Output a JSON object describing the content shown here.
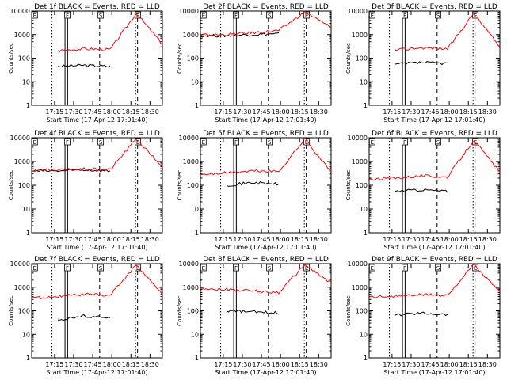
{
  "xlabel": "Start Time (17-Apr-12 17:01:40)",
  "ylabel": "Counts/sec",
  "x_tick_labels": [
    "17:15",
    "17:30",
    "17:45",
    "18:00",
    "18:15",
    "18:30"
  ],
  "y_tick_labels": [
    "1",
    "10",
    "100",
    "1000",
    "10000"
  ],
  "flag_letters": [
    "E",
    "F",
    "S",
    "E"
  ],
  "colors": {
    "events": "#000000",
    "lld": "#ff0000",
    "axes": "#000000"
  },
  "chart_data": [
    {
      "type": "line",
      "title": "Det 1f BLACK = Events, RED = LLD",
      "x": [
        "17:15",
        "17:30",
        "17:45",
        "18:00",
        "18:15",
        "18:30"
      ],
      "ylim": [
        1,
        10000
      ],
      "yscale": "log",
      "series": [
        {
          "values": [
            null,
            45,
            50,
            45,
            null,
            null
          ]
        },
        {
          "values": [
            null,
            210,
            250,
            230,
            8000,
            400
          ]
        }
      ]
    },
    {
      "type": "line",
      "title": "Det 2f BLACK = Events, RED = LLD",
      "x": [
        "17:15",
        "17:30",
        "17:45",
        "18:00",
        "18:15",
        "18:30"
      ],
      "ylim": [
        1,
        10000
      ],
      "yscale": "log",
      "series": [
        {
          "values": [
            900,
            900,
            1000,
            1100,
            null,
            null
          ]
        },
        {
          "values": [
            950,
            1000,
            1200,
            1500,
            9000,
            2000
          ]
        }
      ]
    },
    {
      "type": "line",
      "title": "Det 3f BLACK = Events, RED = LLD",
      "x": [
        "17:15",
        "17:30",
        "17:45",
        "18:00",
        "18:15",
        "18:30"
      ],
      "ylim": [
        1,
        10000
      ],
      "yscale": "log",
      "series": [
        {
          "values": [
            null,
            55,
            65,
            60,
            null,
            null
          ]
        },
        {
          "values": [
            null,
            220,
            280,
            250,
            8000,
            300
          ]
        }
      ]
    },
    {
      "type": "line",
      "title": "Det 4f BLACK = Events, RED = LLD",
      "x": [
        "17:15",
        "17:30",
        "17:45",
        "18:00",
        "18:15",
        "18:30"
      ],
      "ylim": [
        1,
        10000
      ],
      "yscale": "log",
      "series": [
        {
          "values": [
            400,
            400,
            450,
            400,
            null,
            null
          ]
        },
        {
          "values": [
            420,
            430,
            480,
            450,
            9000,
            600
          ]
        }
      ]
    },
    {
      "type": "line",
      "title": "Det 5f BLACK = Events, RED = LLD",
      "x": [
        "17:15",
        "17:30",
        "17:45",
        "18:00",
        "18:15",
        "18:30"
      ],
      "ylim": [
        1,
        10000
      ],
      "yscale": "log",
      "series": [
        {
          "values": [
            null,
            100,
            130,
            110,
            null,
            null
          ]
        },
        {
          "values": [
            280,
            330,
            400,
            380,
            9000,
            350
          ]
        }
      ]
    },
    {
      "type": "line",
      "title": "Det 6f BLACK = Events, RED = LLD",
      "x": [
        "17:15",
        "17:30",
        "17:45",
        "18:00",
        "18:15",
        "18:30"
      ],
      "ylim": [
        1,
        10000
      ],
      "yscale": "log",
      "series": [
        {
          "values": [
            null,
            55,
            65,
            55,
            null,
            null
          ]
        },
        {
          "values": [
            180,
            200,
            250,
            220,
            8000,
            350
          ]
        }
      ]
    },
    {
      "type": "line",
      "title": "Det 7f BLACK = Events, RED = LLD",
      "x": [
        "17:15",
        "17:30",
        "17:45",
        "18:00",
        "18:15",
        "18:30"
      ],
      "ylim": [
        1,
        10000
      ],
      "yscale": "log",
      "series": [
        {
          "values": [
            null,
            40,
            60,
            50,
            null,
            null
          ]
        },
        {
          "values": [
            350,
            400,
            500,
            450,
            9000,
            500
          ]
        }
      ]
    },
    {
      "type": "line",
      "title": "Det 8f BLACK = Events, RED = LLD",
      "x": [
        "17:15",
        "17:30",
        "17:45",
        "18:00",
        "18:15",
        "18:30"
      ],
      "ylim": [
        1,
        10000
      ],
      "yscale": "log",
      "series": [
        {
          "values": [
            null,
            100,
            90,
            80,
            null,
            null
          ]
        },
        {
          "values": [
            900,
            800,
            700,
            600,
            9000,
            1500
          ]
        }
      ]
    },
    {
      "type": "line",
      "title": "Det 9f BLACK = Events, RED = LLD",
      "x": [
        "17:15",
        "17:30",
        "17:45",
        "18:00",
        "18:15",
        "18:30"
      ],
      "ylim": [
        1,
        10000
      ],
      "yscale": "log",
      "series": [
        {
          "values": [
            null,
            65,
            80,
            70,
            null,
            null
          ]
        },
        {
          "values": [
            380,
            420,
            480,
            450,
            9000,
            600
          ]
        }
      ]
    }
  ]
}
